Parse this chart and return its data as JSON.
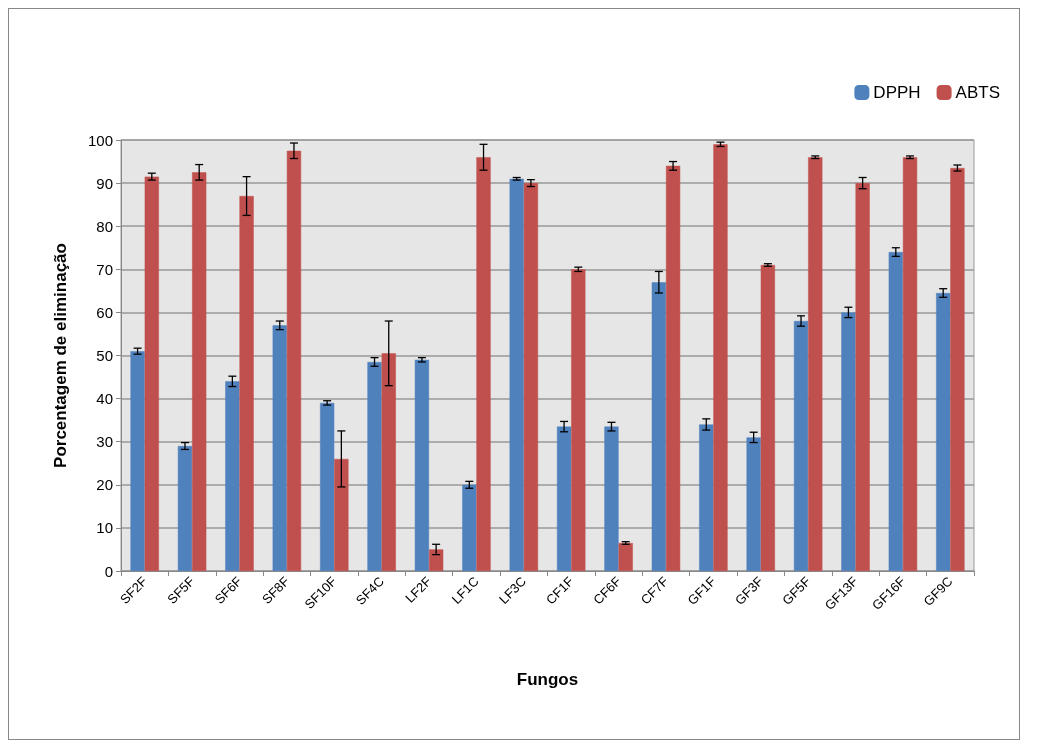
{
  "chart_data": {
    "type": "bar",
    "xlabel": "Fungos",
    "ylabel": "Porcentagem de eliminação",
    "categories": [
      "SF2F",
      "SF5F",
      "SF6F",
      "SF8F",
      "SF10F",
      "SF4C",
      "LF2F",
      "LF1C",
      "LF3C",
      "CF1F",
      "CF6F",
      "CF7F",
      "GF1F",
      "GF3F",
      "GF5F",
      "GF13F",
      "GF16F",
      "GF9C"
    ],
    "series": [
      {
        "name": "DPPH",
        "color": "#4f81bd",
        "values": [
          51,
          29,
          44,
          57,
          39,
          48.5,
          49,
          20,
          91,
          33.5,
          33.5,
          67,
          34,
          31,
          58,
          60,
          74,
          64.5
        ],
        "errors": [
          0.7,
          0.8,
          1.2,
          1,
          0.5,
          1,
          0.5,
          0.8,
          0.3,
          1.2,
          1,
          2.5,
          1.3,
          1.2,
          1.2,
          1.2,
          1,
          1
        ]
      },
      {
        "name": "ABTS",
        "color": "#c0504d",
        "values": [
          91.5,
          92.5,
          87,
          97.5,
          26,
          50.5,
          5,
          96,
          90,
          70,
          6.5,
          94,
          99,
          71,
          96,
          90,
          96,
          93.5
        ],
        "errors": [
          0.8,
          1.8,
          4.5,
          1.8,
          6.5,
          7.5,
          1.2,
          3,
          0.8,
          0.5,
          0.3,
          1,
          0.5,
          0.3,
          0.3,
          1.3,
          0.3,
          0.7
        ]
      }
    ],
    "ylim": [
      0,
      100
    ],
    "yticks": [
      0,
      10,
      20,
      30,
      40,
      50,
      60,
      70,
      80,
      90,
      100
    ],
    "grid": "y",
    "legend": "top right"
  }
}
